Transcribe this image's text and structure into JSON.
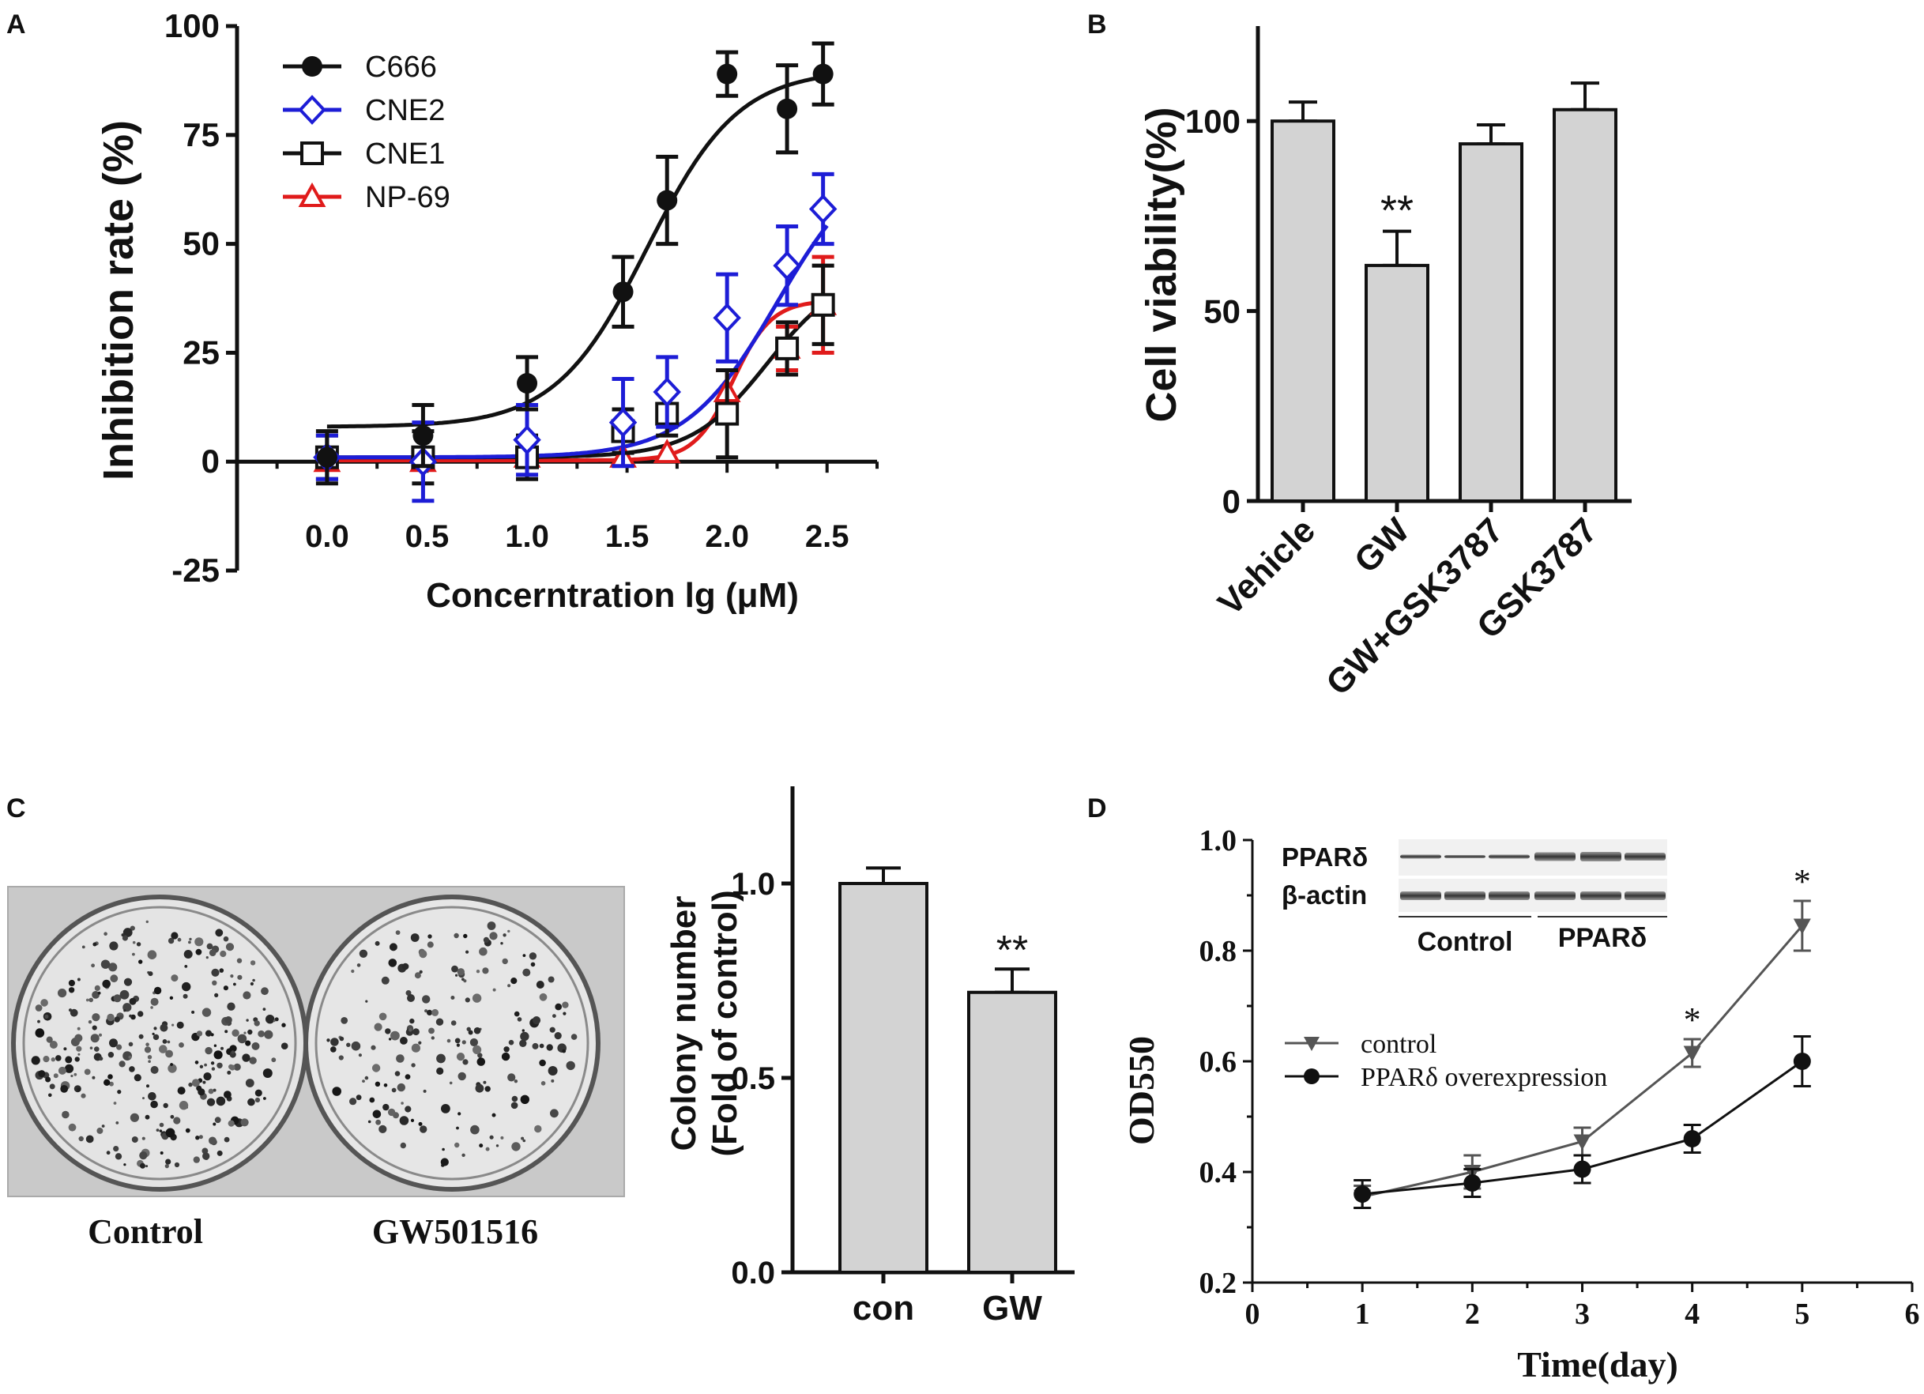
{
  "colors": {
    "axis": "#111111",
    "bar_fill": "#d3d3d3",
    "c666": "#111111",
    "cne2": "#1d1dd6",
    "cne1": "#111111",
    "np69": "#e01b1b",
    "control_line": "#555555",
    "ppar_line": "#111111"
  },
  "panels": {
    "a": {
      "letter": "A"
    },
    "b": {
      "letter": "B"
    },
    "c": {
      "letter": "C",
      "photo_labels": [
        "Control",
        "GW501516"
      ]
    },
    "d": {
      "letter": "D",
      "blot": {
        "row_labels": [
          "PPARδ",
          "β-actin"
        ],
        "group_labels": [
          "Control",
          "PPARδ"
        ]
      }
    }
  },
  "chart_data": [
    {
      "id": "A",
      "type": "line",
      "title": "",
      "xlabel": "Concerntration lg (μM)",
      "ylabel": "Inhibition rate (%)",
      "xlim": [
        -0.45,
        2.75
      ],
      "ylim": [
        -25,
        100
      ],
      "xticks": [
        0.0,
        0.5,
        1.0,
        1.5,
        2.0,
        2.5
      ],
      "xtick_labels": [
        "0.0",
        "0.5",
        "1.0",
        "1.5",
        "2.0",
        "2.5"
      ],
      "yticks": [
        -25,
        0,
        25,
        50,
        75,
        100
      ],
      "ytick_labels": [
        "-25",
        "0",
        "25",
        "50",
        "75",
        "100"
      ],
      "legend_position": "top-left",
      "series": [
        {
          "name": "C666",
          "marker": "circle-filled",
          "x": [
            0.0,
            0.48,
            1.0,
            1.48,
            1.7,
            2.0,
            2.3,
            2.48
          ],
          "y": [
            1,
            6,
            18,
            39,
            60,
            89,
            81,
            89
          ],
          "err": [
            6,
            7,
            6,
            8,
            10,
            5,
            10,
            7
          ],
          "fit": {
            "bottom": 8,
            "top": 90,
            "ec50": 1.6,
            "hill": 1.9
          }
        },
        {
          "name": "CNE2",
          "marker": "diamond-open",
          "x": [
            0.0,
            0.48,
            1.0,
            1.48,
            1.7,
            2.0,
            2.3,
            2.48
          ],
          "y": [
            1,
            0,
            5,
            9,
            16,
            33,
            45,
            58
          ],
          "err": [
            5,
            9,
            8,
            10,
            8,
            10,
            9,
            8
          ],
          "fit": {
            "bottom": 1,
            "top": 72,
            "ec50": 2.25,
            "hill": 1.9
          }
        },
        {
          "name": "CNE1",
          "marker": "square-open",
          "x": [
            0.0,
            0.48,
            1.0,
            1.48,
            1.7,
            2.0,
            2.3,
            2.48
          ],
          "y": [
            1,
            1,
            1,
            7,
            11,
            11,
            26,
            36
          ],
          "err": [
            5,
            6,
            5,
            5,
            5,
            10,
            6,
            9
          ],
          "fit": {
            "bottom": 1,
            "top": 44,
            "ec50": 2.2,
            "hill": 2.3
          }
        },
        {
          "name": "NP-69",
          "marker": "triangle-open",
          "x": [
            0.0,
            0.48,
            1.0,
            1.48,
            1.7,
            2.0,
            2.3,
            2.48
          ],
          "y": [
            0,
            0,
            1,
            1,
            2,
            16,
            26,
            36
          ],
          "err": [
            0,
            0,
            0,
            0,
            0,
            5,
            5,
            11
          ],
          "fit": {
            "bottom": 0.3,
            "top": 37,
            "ec50": 2.03,
            "hill": 4.5
          }
        }
      ]
    },
    {
      "id": "B",
      "type": "bar",
      "title": "",
      "xlabel": "",
      "ylabel": "Cell viability(%)",
      "ylim": [
        0,
        125
      ],
      "yticks": [
        0,
        50,
        100
      ],
      "ytick_labels": [
        "0",
        "50",
        "100"
      ],
      "categories": [
        "Vehicle",
        "GW",
        "GW+GSK3787",
        "GSK3787"
      ],
      "values": [
        100,
        62,
        94,
        103
      ],
      "errors": [
        5,
        9,
        5,
        7
      ],
      "annotations": [
        "",
        "**",
        "",
        ""
      ]
    },
    {
      "id": "C",
      "type": "bar",
      "title": "",
      "xlabel": "",
      "ylabel": "Colony number (Fold of control)",
      "ylabel_lines": [
        "Colony number",
        "(Fold of control)"
      ],
      "ylim": [
        0,
        1.25
      ],
      "yticks": [
        0.0,
        0.5,
        1.0
      ],
      "ytick_labels": [
        "0.0",
        "0.5",
        "1.0"
      ],
      "categories": [
        "con",
        "GW"
      ],
      "values": [
        1.0,
        0.72
      ],
      "errors": [
        0.04,
        0.06
      ],
      "annotations": [
        "",
        "**"
      ]
    },
    {
      "id": "D",
      "type": "line",
      "title": "",
      "xlabel": "Time(day)",
      "ylabel": "OD550",
      "xlim": [
        0,
        6
      ],
      "ylim": [
        0.2,
        1.0
      ],
      "xticks": [
        0,
        1,
        2,
        3,
        4,
        5,
        6
      ],
      "xtick_labels": [
        "0",
        "1",
        "2",
        "3",
        "4",
        "5",
        "6"
      ],
      "yticks": [
        0.2,
        0.4,
        0.6,
        0.8,
        1.0
      ],
      "ytick_labels": [
        "0.2",
        "0.4",
        "0.6",
        "0.8",
        "1.0"
      ],
      "legend_position": "center-left",
      "series": [
        {
          "name": "control",
          "marker": "triangle-down-filled",
          "x": [
            1,
            2,
            3,
            4,
            5
          ],
          "y": [
            0.355,
            0.4,
            0.455,
            0.615,
            0.845
          ],
          "err": [
            0.02,
            0.03,
            0.025,
            0.025,
            0.045
          ],
          "annotations": [
            "",
            "",
            "",
            "*",
            "*"
          ]
        },
        {
          "name": "PPARδ overexpression",
          "marker": "circle-filled",
          "x": [
            1,
            2,
            3,
            4,
            5
          ],
          "y": [
            0.36,
            0.38,
            0.405,
            0.46,
            0.6
          ],
          "err": [
            0.025,
            0.025,
            0.025,
            0.025,
            0.045
          ]
        }
      ]
    }
  ]
}
